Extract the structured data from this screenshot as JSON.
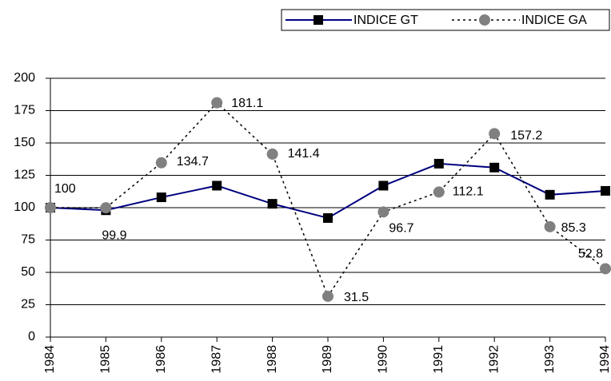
{
  "chart_data": {
    "type": "line",
    "categories": [
      "1984",
      "1985",
      "1986",
      "1987",
      "1988",
      "1989",
      "1990",
      "1991",
      "1992",
      "1993",
      "1994"
    ],
    "series": [
      {
        "name": "INDICE GT",
        "color": "#000080",
        "values": [
          100,
          98,
          108,
          117,
          103,
          92,
          117,
          134,
          131,
          110,
          113
        ]
      },
      {
        "name": "INDICE GA",
        "color": "#808080",
        "values": [
          100,
          99.9,
          134.7,
          181.1,
          141.4,
          31.5,
          96.7,
          112.1,
          157.2,
          85.3,
          52.8
        ]
      }
    ],
    "ylim": [
      0,
      200
    ],
    "yticks": [
      0,
      25,
      50,
      75,
      100,
      125,
      150,
      175,
      200
    ],
    "grid": true,
    "legend": "top-right"
  }
}
